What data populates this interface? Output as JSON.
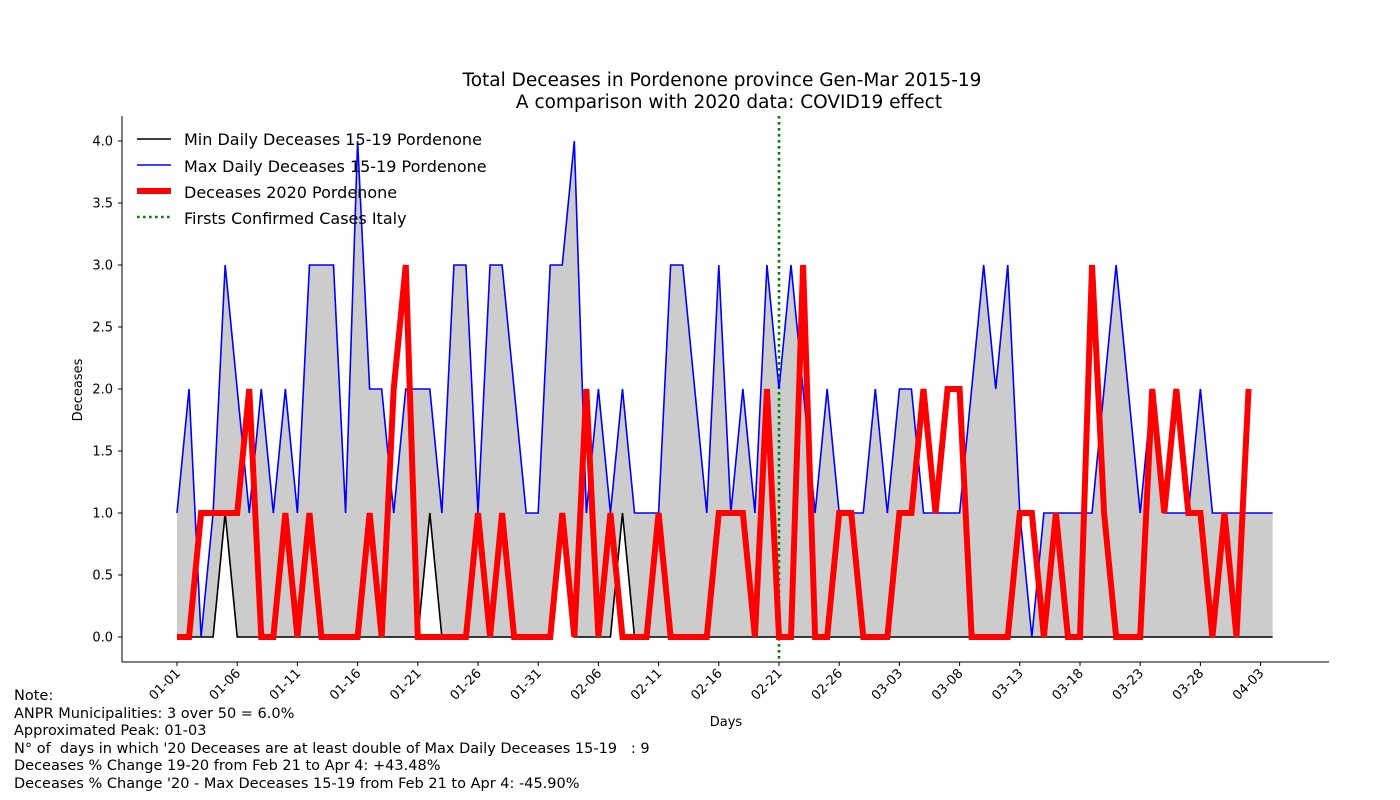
{
  "chart_data": {
    "type": "line",
    "title": "Total Deceases in Pordenone province Gen-Mar 2015-19",
    "subtitle": "A comparison with 2020 data: COVID19 effect",
    "xlabel": "Days",
    "ylabel": "Deceases",
    "ylim": [
      0,
      4.0
    ],
    "yticks": [
      "0.0",
      "0.5",
      "1.0",
      "1.5",
      "2.0",
      "2.5",
      "3.0",
      "3.5",
      "4.0"
    ],
    "xtick_labels": [
      "01-01",
      "01-06",
      "01-11",
      "01-16",
      "01-21",
      "01-26",
      "01-31",
      "02-06",
      "02-11",
      "02-16",
      "02-21",
      "02-26",
      "03-03",
      "03-08",
      "03-13",
      "03-18",
      "03-23",
      "03-28",
      "04-03"
    ],
    "legend_position": "top-left",
    "legend": [
      {
        "label": "Min Daily Deceases 15-19 Pordenone",
        "color": "#000000",
        "style": "solid-thin"
      },
      {
        "label": "Max Daily Deceases 15-19 Pordenone",
        "color": "#0000ff",
        "style": "solid-thin"
      },
      {
        "label": "Deceases 2020 Pordenone",
        "color": "#ff0000",
        "style": "solid-thick"
      },
      {
        "label": "Firsts Confirmed Cases Italy",
        "color": "#008000",
        "style": "dotted"
      }
    ],
    "vline_day_index": 50,
    "fill_color": "#cccccc",
    "series": [
      {
        "name": "Min Daily Deceases 15-19 Pordenone",
        "color": "#000000",
        "values": [
          0,
          0,
          0,
          0,
          1,
          0,
          0,
          0,
          0,
          0,
          0,
          0,
          0,
          0,
          0,
          0,
          0,
          0,
          0,
          0,
          0,
          1,
          0,
          0,
          0,
          0,
          0,
          0,
          0,
          0,
          0,
          0,
          1,
          0,
          0,
          0,
          0,
          1,
          0,
          0,
          0,
          0,
          0,
          0,
          0,
          0,
          0,
          0,
          0,
          0,
          0,
          0,
          0,
          0,
          0,
          0,
          0,
          0,
          0,
          0,
          0,
          0,
          0,
          0,
          0,
          0,
          0,
          0,
          0,
          0,
          0,
          0,
          0,
          0,
          0,
          0,
          0,
          0,
          0,
          0,
          0,
          0,
          0,
          0,
          0,
          0,
          0,
          0,
          0,
          0,
          0,
          0
        ]
      },
      {
        "name": "Max Daily Deceases 15-19 Pordenone",
        "color": "#0000ff",
        "values": [
          1,
          2,
          0,
          1,
          3,
          2,
          1,
          2,
          1,
          2,
          1,
          3,
          3,
          3,
          1,
          4,
          2,
          2,
          1,
          2,
          2,
          2,
          1,
          3,
          3,
          1,
          3,
          3,
          2,
          1,
          1,
          3,
          3,
          4,
          1,
          2,
          1,
          2,
          1,
          1,
          1,
          3,
          3,
          2,
          1,
          3,
          1,
          2,
          1,
          3,
          2,
          3,
          2,
          1,
          2,
          1,
          1,
          1,
          2,
          1,
          2,
          2,
          1,
          1,
          1,
          1,
          2,
          3,
          2,
          3,
          1,
          0,
          1,
          1,
          1,
          1,
          1,
          2,
          3,
          2,
          1,
          2,
          1,
          1,
          1,
          2,
          1,
          1,
          1,
          1,
          1,
          1
        ]
      },
      {
        "name": "Deceases 2020 Pordenone",
        "color": "#ff0000",
        "values": [
          0,
          0,
          1,
          1,
          1,
          1,
          2,
          0,
          0,
          1,
          0,
          1,
          0,
          0,
          0,
          0,
          1,
          0,
          2,
          3,
          0,
          0,
          0,
          0,
          0,
          1,
          0,
          1,
          0,
          0,
          0,
          0,
          1,
          0,
          2,
          0,
          1,
          0,
          0,
          0,
          1,
          0,
          0,
          0,
          0,
          1,
          1,
          1,
          0,
          2,
          0,
          0,
          3,
          0,
          0,
          1,
          1,
          0,
          0,
          0,
          1,
          1,
          2,
          1,
          2,
          2,
          0,
          0,
          0,
          0,
          1,
          1,
          0,
          1,
          0,
          0,
          3,
          1,
          0,
          0,
          0,
          2,
          1,
          2,
          1,
          1,
          0,
          1,
          0,
          2
        ]
      }
    ]
  },
  "notes": {
    "heading": "Note:",
    "line1": "ANPR Municipalities: 3 over 50 = 6.0%",
    "line2": "Approximated Peak: 01-03",
    "line3": "N° of  days in which '20 Deceases are at least double of Max Daily Deceases 15-19   : 9",
    "line4": "Deceases % Change 19-20 from Feb 21 to Apr 4: +43.48%",
    "line5": "Deceases % Change '20 - Max Deceases 15-19 from Feb 21 to Apr 4: -45.90%"
  }
}
